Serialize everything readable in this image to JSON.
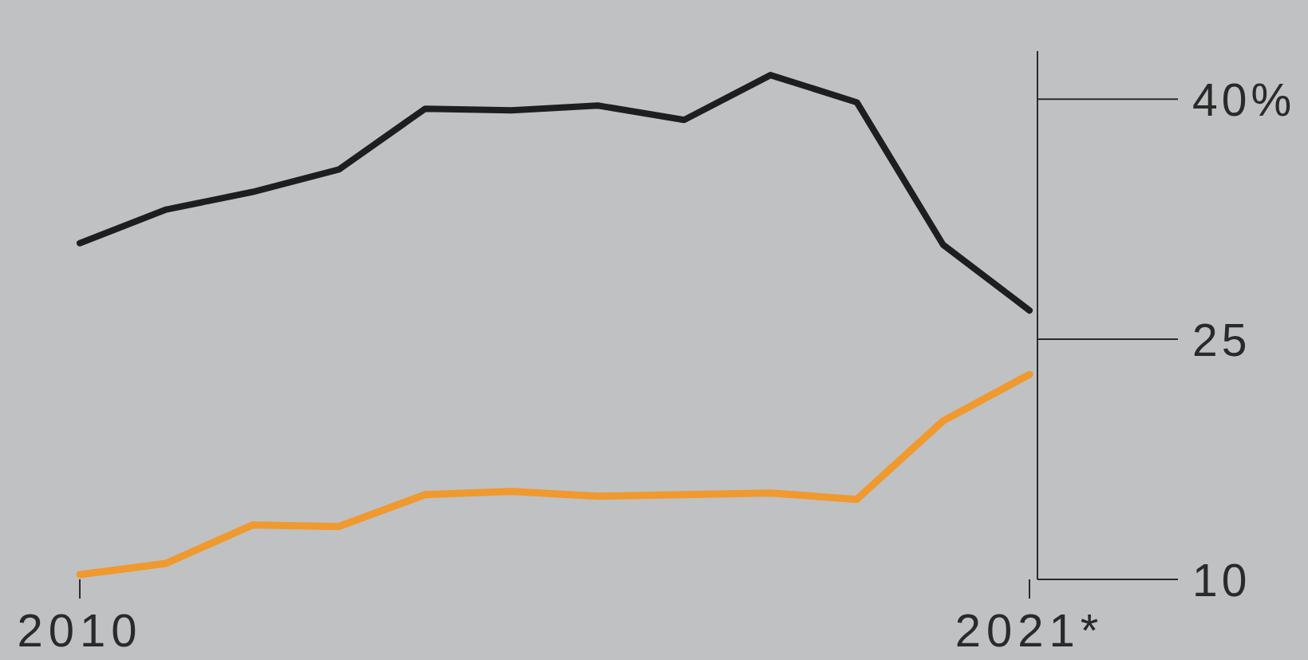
{
  "chart_data": {
    "type": "line",
    "x": [
      2010,
      2011,
      2012,
      2013,
      2014,
      2015,
      2016,
      2017,
      2018,
      2019,
      2020,
      2021
    ],
    "xlim": [
      2010,
      2021
    ],
    "xticks": [
      2010,
      {
        "value": 2021,
        "label": "2021*"
      }
    ],
    "ylim": [
      10,
      43
    ],
    "yticks": [
      10,
      25,
      {
        "value": 40,
        "label": "40%"
      }
    ],
    "series": [
      {
        "color": "#1e1e20",
        "values": [
          31.0,
          33.1,
          34.2,
          35.6,
          39.4,
          39.3,
          39.6,
          38.7,
          41.5,
          39.8,
          30.9,
          26.8
        ]
      },
      {
        "color": "#f0992e",
        "values": [
          10.3,
          11.0,
          13.4,
          13.3,
          15.3,
          15.5,
          15.2,
          15.3,
          15.4,
          15.0,
          19.9,
          22.8
        ]
      }
    ]
  }
}
